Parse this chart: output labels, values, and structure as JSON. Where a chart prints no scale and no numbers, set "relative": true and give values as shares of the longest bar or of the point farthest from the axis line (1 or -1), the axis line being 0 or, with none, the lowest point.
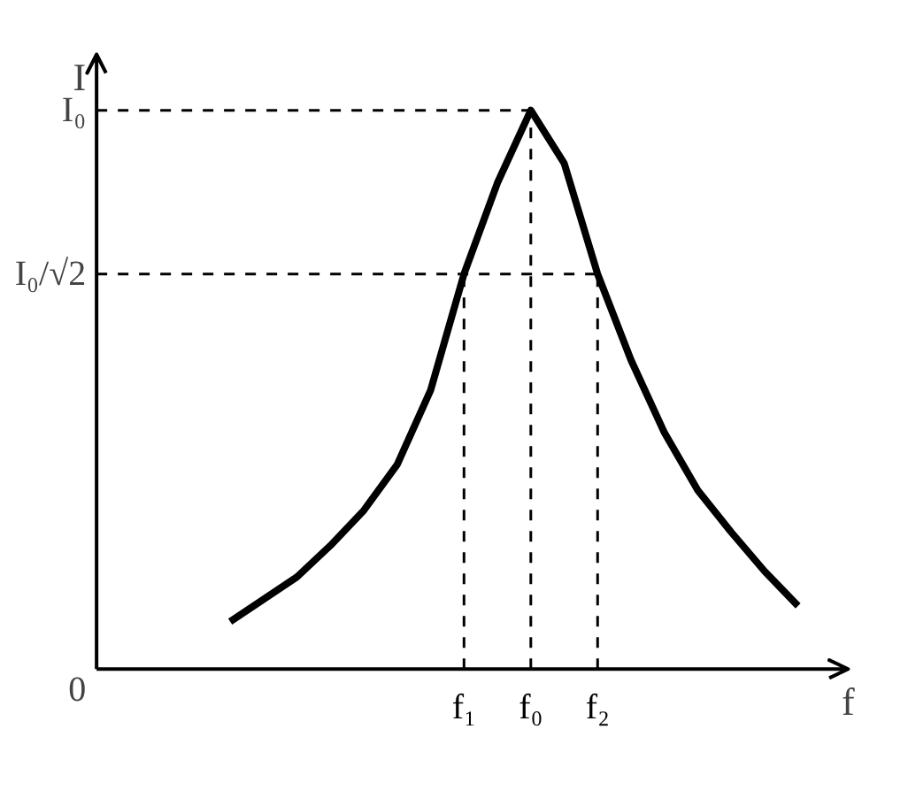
{
  "chart_data": {
    "type": "line",
    "xlabel": "f",
    "ylabel": "I",
    "relative": true,
    "annotations": [
      "0"
    ],
    "categories": [
      null,
      null,
      null,
      null,
      null,
      null,
      null,
      "f₁",
      null,
      "f₀",
      null,
      "f₂",
      null,
      null,
      null,
      null,
      null,
      null
    ],
    "series": [
      {
        "color": "#000000",
        "values": [
          0.085,
          0.125,
          0.165,
          0.221,
          0.284,
          0.366,
          0.499,
          0.707,
          0.87,
          1.0,
          0.905,
          0.707,
          0.553,
          0.423,
          0.32,
          0.245,
          0.175,
          0.113
        ]
      }
    ],
    "ref_lines": [
      {
        "axis": "x",
        "value": "f₁",
        "line_style": "dashed",
        "color": "#000000"
      },
      {
        "axis": "x",
        "value": "f₀",
        "line_style": "dashed",
        "color": "#000000"
      },
      {
        "axis": "x",
        "value": "f₂",
        "line_style": "dashed",
        "color": "#000000"
      },
      {
        "axis": "y",
        "value": 1.0,
        "label": "I₀",
        "line_style": "dashed",
        "color": "#000000"
      },
      {
        "axis": "y",
        "value": 0.707,
        "label": "I₀/√2",
        "line_style": "dashed",
        "color": "#000000"
      }
    ],
    "grid": false,
    "marker": "none",
    "line_style": "solid"
  }
}
